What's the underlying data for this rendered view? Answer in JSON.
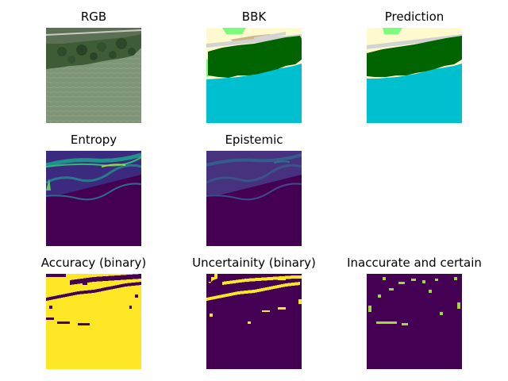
{
  "panels": {
    "rgb": {
      "title": "RGB"
    },
    "bbk": {
      "title": "BBK"
    },
    "prediction": {
      "title": "Prediction"
    },
    "entropy": {
      "title": "Entropy"
    },
    "epistemic": {
      "title": "Epistemic"
    },
    "accuracy": {
      "title": "Accuracy (binary)"
    },
    "uncertainty": {
      "title": "Uncertainity (binary)"
    },
    "inaccurate": {
      "title": "Inaccurate and certain"
    }
  },
  "colors": {
    "water": "#00bfcf",
    "forest": "#006400",
    "sand": "#fffacd",
    "road": "#d3d3d3",
    "meadow": "#7cfc7c",
    "field": "#d2b48c",
    "viridis_low": "#440154",
    "viridis_mid": "#21918c",
    "viridis_high": "#fde725",
    "aerial_forest": "#3b5a35",
    "aerial_water": "#7c9174"
  }
}
